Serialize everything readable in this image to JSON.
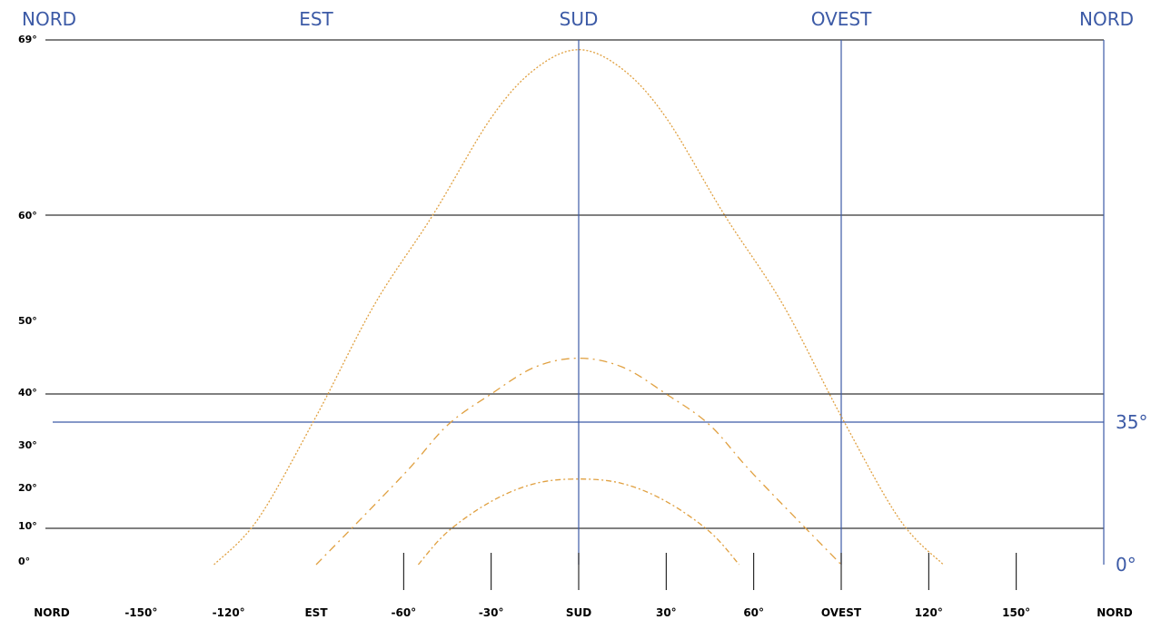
{
  "chart_data": {
    "type": "line",
    "title": "",
    "xlabel": "",
    "ylabel": "",
    "top_labels": [
      "NORD",
      "EST",
      "SUD",
      "OVEST",
      "NORD"
    ],
    "y_tick_labels": [
      {
        "value": 0,
        "label": "0°"
      },
      {
        "value": 10,
        "label": "10°"
      },
      {
        "value": 20,
        "label": "20°"
      },
      {
        "value": 30,
        "label": "30°"
      },
      {
        "value": 40,
        "label": "40°"
      },
      {
        "value": 50,
        "label": "50°"
      },
      {
        "value": 60,
        "label": "60°"
      },
      {
        "value": 69,
        "label": "69°"
      }
    ],
    "x_tick_labels": [
      {
        "value": -180,
        "label": "NORD"
      },
      {
        "value": -150,
        "label": "-150°"
      },
      {
        "value": -120,
        "label": "-120°"
      },
      {
        "value": -90,
        "label": "EST"
      },
      {
        "value": -60,
        "label": "-60°"
      },
      {
        "value": -30,
        "label": "-30°"
      },
      {
        "value": 0,
        "label": "SUD"
      },
      {
        "value": 30,
        "label": "30°"
      },
      {
        "value": 60,
        "label": "60°"
      },
      {
        "value": 90,
        "label": "OVEST"
      },
      {
        "value": 120,
        "label": "120°"
      },
      {
        "value": 150,
        "label": "150°"
      },
      {
        "value": 180,
        "label": "NORD"
      }
    ],
    "xlim": [
      -180,
      180
    ],
    "h_gridlines": [
      10,
      40,
      60,
      69
    ],
    "v_lines": [
      0,
      90,
      180
    ],
    "bottom_ticks": [
      -60,
      -30,
      0,
      30,
      60,
      90,
      120,
      150
    ],
    "reference_altitude": {
      "value": 35,
      "label": "35°"
    },
    "zero_label": "0°",
    "series_color": "#e0a040",
    "series": [
      {
        "points": [
          [
            -125,
            0
          ],
          [
            -110,
            12
          ],
          [
            -90,
            35
          ],
          [
            -70,
            50
          ],
          [
            -50,
            60
          ],
          [
            -30,
            65
          ],
          [
            -15,
            67.5
          ],
          [
            0,
            68.5
          ],
          [
            15,
            67.5
          ],
          [
            30,
            65
          ],
          [
            50,
            60
          ],
          [
            70,
            50
          ],
          [
            90,
            35
          ],
          [
            110,
            12
          ],
          [
            125,
            0
          ]
        ]
      },
      {
        "points": [
          [
            -90,
            0
          ],
          [
            -60,
            22
          ],
          [
            -45,
            33
          ],
          [
            -30,
            40
          ],
          [
            -15,
            43
          ],
          [
            0,
            44
          ],
          [
            15,
            43
          ],
          [
            30,
            40
          ],
          [
            45,
            33
          ],
          [
            60,
            22
          ],
          [
            90,
            0
          ]
        ]
      },
      {
        "points": [
          [
            -55,
            0
          ],
          [
            -45,
            9
          ],
          [
            -30,
            16
          ],
          [
            -15,
            20
          ],
          [
            0,
            21
          ],
          [
            15,
            20
          ],
          [
            30,
            16
          ],
          [
            45,
            9
          ],
          [
            55,
            0
          ]
        ]
      }
    ]
  }
}
